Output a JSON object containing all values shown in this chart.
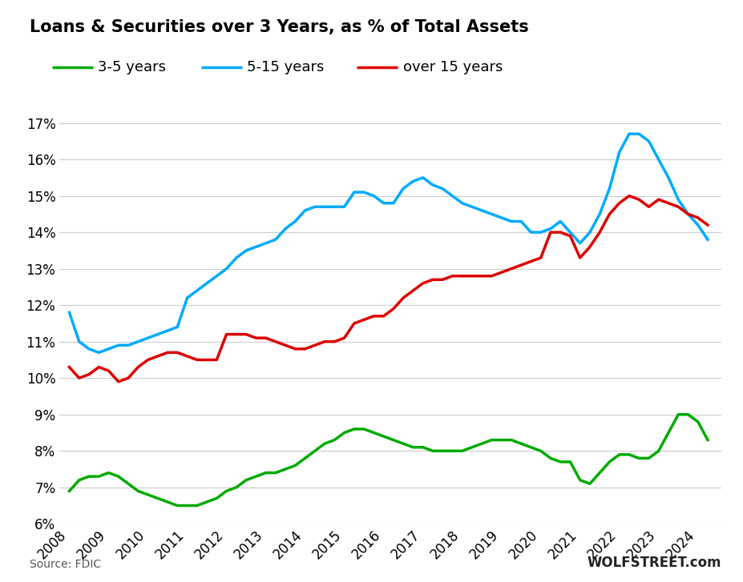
{
  "title": "Loans & Securities over 3 Years, as % of Total Assets",
  "source_text": "Source: FDIC",
  "watermark": "WOLFSTREET.com",
  "ylim": [
    0.06,
    0.175
  ],
  "yticks": [
    0.06,
    0.07,
    0.08,
    0.09,
    0.1,
    0.11,
    0.12,
    0.13,
    0.14,
    0.15,
    0.16,
    0.17
  ],
  "ytick_labels": [
    "6%",
    "7%",
    "8%",
    "9%",
    "10%",
    "11%",
    "12%",
    "13%",
    "14%",
    "15%",
    "16%",
    "17%"
  ],
  "background_color": "#ffffff",
  "grid_color": "#cccccc",
  "xlim_left": 2007.75,
  "xlim_right": 2024.6,
  "xticks": [
    2008,
    2009,
    2010,
    2011,
    2012,
    2013,
    2014,
    2015,
    2016,
    2017,
    2018,
    2019,
    2020,
    2021,
    2022,
    2023,
    2024
  ],
  "series": [
    {
      "label": "3-5 years",
      "color": "#00aa00",
      "x": [
        2008.0,
        2008.25,
        2008.5,
        2008.75,
        2009.0,
        2009.25,
        2009.5,
        2009.75,
        2010.0,
        2010.25,
        2010.5,
        2010.75,
        2011.0,
        2011.25,
        2011.5,
        2011.75,
        2012.0,
        2012.25,
        2012.5,
        2012.75,
        2013.0,
        2013.25,
        2013.5,
        2013.75,
        2014.0,
        2014.25,
        2014.5,
        2014.75,
        2015.0,
        2015.25,
        2015.5,
        2015.75,
        2016.0,
        2016.25,
        2016.5,
        2016.75,
        2017.0,
        2017.25,
        2017.5,
        2017.75,
        2018.0,
        2018.25,
        2018.5,
        2018.75,
        2019.0,
        2019.25,
        2019.5,
        2019.75,
        2020.0,
        2020.25,
        2020.5,
        2020.75,
        2021.0,
        2021.25,
        2021.5,
        2021.75,
        2022.0,
        2022.25,
        2022.5,
        2022.75,
        2023.0,
        2023.25,
        2023.5,
        2023.75,
        2024.0,
        2024.25
      ],
      "y": [
        0.069,
        0.072,
        0.073,
        0.073,
        0.074,
        0.073,
        0.071,
        0.069,
        0.068,
        0.067,
        0.066,
        0.065,
        0.065,
        0.065,
        0.066,
        0.067,
        0.069,
        0.07,
        0.072,
        0.073,
        0.074,
        0.074,
        0.075,
        0.076,
        0.078,
        0.08,
        0.082,
        0.083,
        0.085,
        0.086,
        0.086,
        0.085,
        0.084,
        0.083,
        0.082,
        0.081,
        0.081,
        0.08,
        0.08,
        0.08,
        0.08,
        0.081,
        0.082,
        0.083,
        0.083,
        0.083,
        0.082,
        0.081,
        0.08,
        0.078,
        0.077,
        0.077,
        0.072,
        0.071,
        0.074,
        0.077,
        0.079,
        0.079,
        0.078,
        0.078,
        0.08,
        0.085,
        0.09,
        0.09,
        0.088,
        0.083
      ]
    },
    {
      "label": "5-15 years",
      "color": "#00aaff",
      "x": [
        2008.0,
        2008.25,
        2008.5,
        2008.75,
        2009.0,
        2009.25,
        2009.5,
        2009.75,
        2010.0,
        2010.25,
        2010.5,
        2010.75,
        2011.0,
        2011.25,
        2011.5,
        2011.75,
        2012.0,
        2012.25,
        2012.5,
        2012.75,
        2013.0,
        2013.25,
        2013.5,
        2013.75,
        2014.0,
        2014.25,
        2014.5,
        2014.75,
        2015.0,
        2015.25,
        2015.5,
        2015.75,
        2016.0,
        2016.25,
        2016.5,
        2016.75,
        2017.0,
        2017.25,
        2017.5,
        2017.75,
        2018.0,
        2018.25,
        2018.5,
        2018.75,
        2019.0,
        2019.25,
        2019.5,
        2019.75,
        2020.0,
        2020.25,
        2020.5,
        2020.75,
        2021.0,
        2021.25,
        2021.5,
        2021.75,
        2022.0,
        2022.25,
        2022.5,
        2022.75,
        2023.0,
        2023.25,
        2023.5,
        2023.75,
        2024.0,
        2024.25
      ],
      "y": [
        0.118,
        0.11,
        0.108,
        0.107,
        0.108,
        0.109,
        0.109,
        0.11,
        0.111,
        0.112,
        0.113,
        0.114,
        0.122,
        0.124,
        0.126,
        0.128,
        0.13,
        0.133,
        0.135,
        0.136,
        0.137,
        0.138,
        0.141,
        0.143,
        0.146,
        0.147,
        0.147,
        0.147,
        0.147,
        0.151,
        0.151,
        0.15,
        0.148,
        0.148,
        0.152,
        0.154,
        0.155,
        0.153,
        0.152,
        0.15,
        0.148,
        0.147,
        0.146,
        0.145,
        0.144,
        0.143,
        0.143,
        0.14,
        0.14,
        0.141,
        0.143,
        0.14,
        0.137,
        0.14,
        0.145,
        0.152,
        0.162,
        0.167,
        0.167,
        0.165,
        0.16,
        0.155,
        0.149,
        0.145,
        0.142,
        0.138
      ]
    },
    {
      "label": "over 15 years",
      "color": "#dd0000",
      "x": [
        2008.0,
        2008.25,
        2008.5,
        2008.75,
        2009.0,
        2009.25,
        2009.5,
        2009.75,
        2010.0,
        2010.25,
        2010.5,
        2010.75,
        2011.0,
        2011.25,
        2011.5,
        2011.75,
        2012.0,
        2012.25,
        2012.5,
        2012.75,
        2013.0,
        2013.25,
        2013.5,
        2013.75,
        2014.0,
        2014.25,
        2014.5,
        2014.75,
        2015.0,
        2015.25,
        2015.5,
        2015.75,
        2016.0,
        2016.25,
        2016.5,
        2016.75,
        2017.0,
        2017.25,
        2017.5,
        2017.75,
        2018.0,
        2018.25,
        2018.5,
        2018.75,
        2019.0,
        2019.25,
        2019.5,
        2019.75,
        2020.0,
        2020.25,
        2020.5,
        2020.75,
        2021.0,
        2021.25,
        2021.5,
        2021.75,
        2022.0,
        2022.25,
        2022.5,
        2022.75,
        2023.0,
        2023.25,
        2023.5,
        2023.75,
        2024.0,
        2024.25
      ],
      "y": [
        0.103,
        0.1,
        0.101,
        0.103,
        0.102,
        0.099,
        0.1,
        0.103,
        0.105,
        0.106,
        0.107,
        0.107,
        0.106,
        0.105,
        0.105,
        0.105,
        0.112,
        0.112,
        0.112,
        0.111,
        0.111,
        0.11,
        0.109,
        0.108,
        0.108,
        0.109,
        0.11,
        0.11,
        0.111,
        0.115,
        0.116,
        0.117,
        0.117,
        0.119,
        0.122,
        0.124,
        0.126,
        0.127,
        0.127,
        0.128,
        0.128,
        0.128,
        0.128,
        0.128,
        0.129,
        0.13,
        0.131,
        0.132,
        0.133,
        0.14,
        0.14,
        0.139,
        0.133,
        0.136,
        0.14,
        0.145,
        0.148,
        0.15,
        0.149,
        0.147,
        0.149,
        0.148,
        0.147,
        0.145,
        0.144,
        0.142
      ]
    }
  ]
}
